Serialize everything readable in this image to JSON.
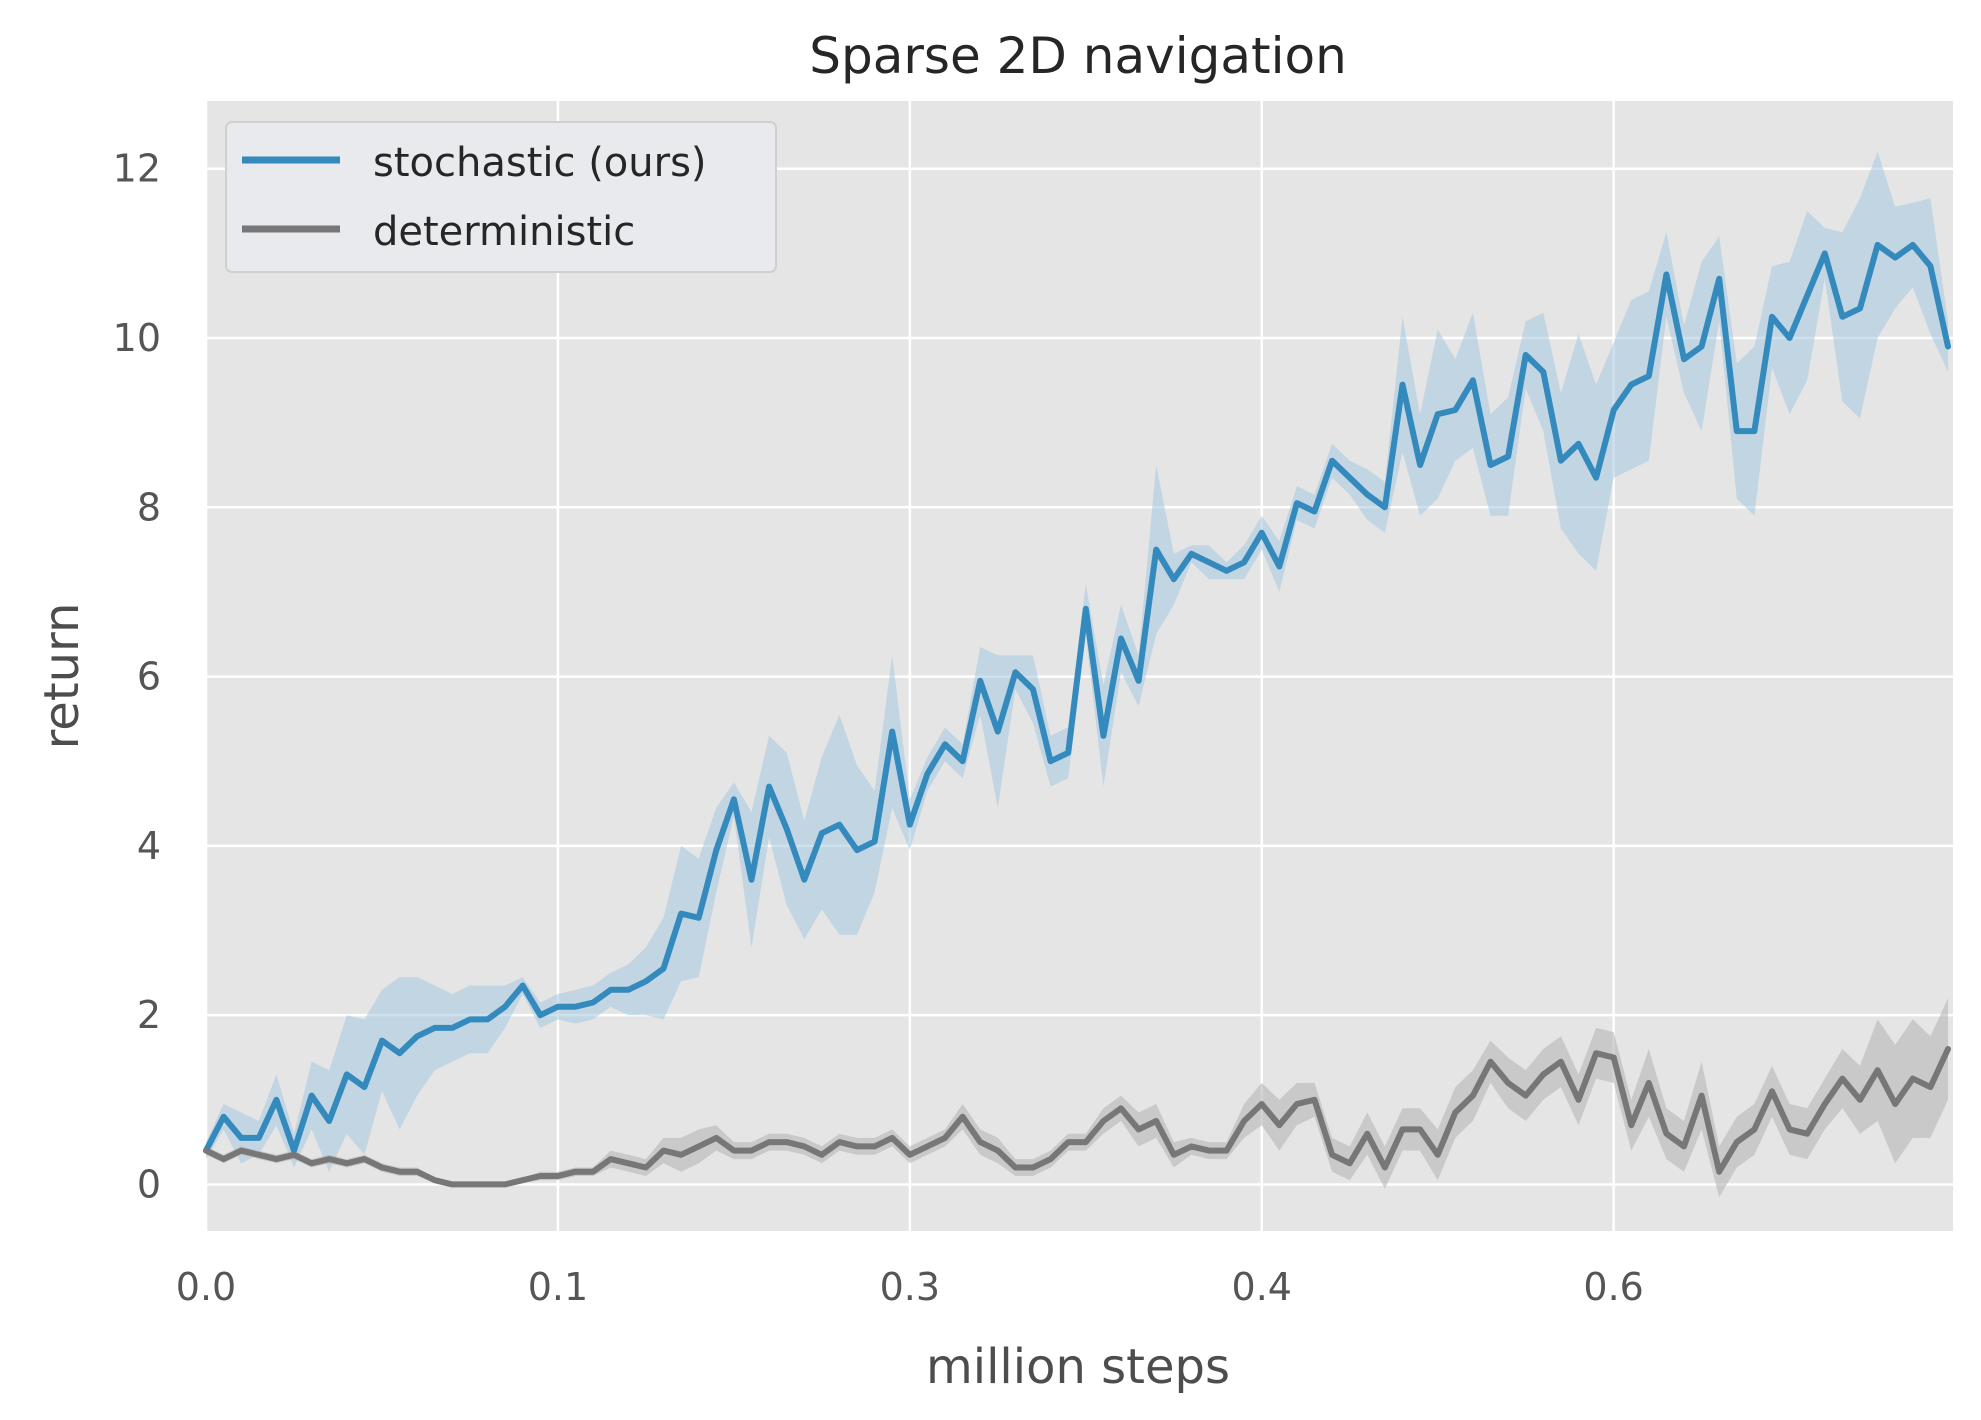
{
  "chart_data": {
    "type": "line",
    "title": "Sparse 2D navigation",
    "xlabel": "million steps",
    "ylabel": "return",
    "xlim": [
      0.0,
      0.695
    ],
    "ylim": [
      -0.55,
      12.8
    ],
    "x_ticks": [
      {
        "value": 0.0,
        "label": "0.0"
      },
      {
        "value": 0.14,
        "label": "0.1"
      },
      {
        "value": 0.28,
        "label": "0.3"
      },
      {
        "value": 0.42,
        "label": "0.4"
      },
      {
        "value": 0.56,
        "label": "0.6"
      }
    ],
    "y_ticks": [
      {
        "value": 0,
        "label": "0"
      },
      {
        "value": 2,
        "label": "2"
      },
      {
        "value": 4,
        "label": "4"
      },
      {
        "value": 6,
        "label": "6"
      },
      {
        "value": 8,
        "label": "8"
      },
      {
        "value": 10,
        "label": "10"
      },
      {
        "value": 12,
        "label": "12"
      }
    ],
    "grid": true,
    "legend_position": "top-left",
    "x_start": 0.0,
    "x_step": 0.007,
    "series": [
      {
        "name": "stochastic (ours)",
        "color": "#348abd",
        "band_color": "#a6c8e0",
        "values": [
          0.4,
          0.8,
          0.55,
          0.55,
          1.0,
          0.4,
          1.05,
          0.75,
          1.3,
          1.15,
          1.7,
          1.55,
          1.75,
          1.85,
          1.85,
          1.95,
          1.95,
          2.1,
          2.35,
          2.0,
          2.1,
          2.1,
          2.15,
          2.3,
          2.3,
          2.4,
          2.55,
          3.2,
          3.15,
          3.95,
          4.55,
          3.6,
          4.7,
          4.2,
          3.6,
          4.15,
          4.25,
          3.95,
          4.05,
          5.35,
          4.25,
          4.85,
          5.2,
          5.0,
          5.95,
          5.35,
          6.05,
          5.85,
          5.0,
          5.1,
          6.8,
          5.3,
          6.45,
          5.95,
          7.5,
          7.15,
          7.45,
          7.35,
          7.25,
          7.35,
          7.7,
          7.3,
          8.05,
          7.95,
          8.55,
          8.35,
          8.15,
          8.0,
          9.45,
          8.5,
          9.1,
          9.15,
          9.5,
          8.5,
          8.6,
          9.8,
          9.6,
          8.55,
          8.75,
          8.35,
          9.15,
          9.45,
          9.55,
          10.75,
          9.75,
          9.9,
          10.7,
          8.9,
          8.9,
          10.25,
          10.0,
          10.5,
          11.0,
          10.25,
          10.35,
          11.1,
          10.95,
          11.1,
          10.85,
          9.9
        ],
        "band_width": [
          0.1,
          0.15,
          0.3,
          0.2,
          0.3,
          0.2,
          0.4,
          0.6,
          0.7,
          0.8,
          0.6,
          0.9,
          0.7,
          0.5,
          0.4,
          0.4,
          0.4,
          0.25,
          0.1,
          0.15,
          0.15,
          0.2,
          0.2,
          0.2,
          0.3,
          0.4,
          0.6,
          0.8,
          0.7,
          0.5,
          0.2,
          0.8,
          0.6,
          0.9,
          0.7,
          0.9,
          1.3,
          1.0,
          0.6,
          0.9,
          0.3,
          0.2,
          0.2,
          0.2,
          0.4,
          0.9,
          0.2,
          0.4,
          0.3,
          0.3,
          0.3,
          0.6,
          0.4,
          0.3,
          1.0,
          0.3,
          0.1,
          0.2,
          0.1,
          0.2,
          0.2,
          0.3,
          0.2,
          0.2,
          0.2,
          0.2,
          0.3,
          0.3,
          0.8,
          0.6,
          1.0,
          0.6,
          0.8,
          0.6,
          0.7,
          0.4,
          0.7,
          0.8,
          1.3,
          1.1,
          0.8,
          1.0,
          1.0,
          0.5,
          0.4,
          1.0,
          0.5,
          0.8,
          1.0,
          0.6,
          0.9,
          1.0,
          0.3,
          1.0,
          1.3,
          1.1,
          0.6,
          0.5,
          0.8,
          0.3
        ]
      },
      {
        "name": "deterministic",
        "color": "#777777",
        "band_color": "#b5b5b5",
        "values": [
          0.4,
          0.3,
          0.4,
          0.35,
          0.3,
          0.35,
          0.25,
          0.3,
          0.25,
          0.3,
          0.2,
          0.15,
          0.15,
          0.05,
          0.0,
          0.0,
          0.0,
          0.0,
          0.05,
          0.1,
          0.1,
          0.15,
          0.15,
          0.3,
          0.25,
          0.2,
          0.4,
          0.35,
          0.45,
          0.55,
          0.4,
          0.4,
          0.5,
          0.5,
          0.45,
          0.35,
          0.5,
          0.45,
          0.45,
          0.55,
          0.35,
          0.45,
          0.55,
          0.8,
          0.5,
          0.4,
          0.2,
          0.2,
          0.3,
          0.5,
          0.5,
          0.75,
          0.9,
          0.65,
          0.75,
          0.35,
          0.45,
          0.4,
          0.4,
          0.75,
          0.95,
          0.7,
          0.95,
          1.0,
          0.35,
          0.25,
          0.6,
          0.2,
          0.65,
          0.65,
          0.35,
          0.85,
          1.05,
          1.45,
          1.2,
          1.05,
          1.3,
          1.45,
          1.0,
          1.55,
          1.5,
          0.7,
          1.2,
          0.6,
          0.45,
          1.05,
          0.15,
          0.5,
          0.65,
          1.1,
          0.65,
          0.6,
          0.95,
          1.25,
          1.0,
          1.35,
          0.95,
          1.25,
          1.15,
          1.6
        ],
        "band_width": [
          0.05,
          0.05,
          0.05,
          0.05,
          0.05,
          0.05,
          0.05,
          0.05,
          0.05,
          0.05,
          0.05,
          0.05,
          0.05,
          0.03,
          0.02,
          0.02,
          0.02,
          0.02,
          0.03,
          0.05,
          0.05,
          0.05,
          0.05,
          0.1,
          0.1,
          0.1,
          0.15,
          0.2,
          0.2,
          0.15,
          0.1,
          0.1,
          0.1,
          0.1,
          0.1,
          0.1,
          0.1,
          0.1,
          0.1,
          0.1,
          0.1,
          0.1,
          0.1,
          0.15,
          0.15,
          0.15,
          0.1,
          0.1,
          0.1,
          0.1,
          0.1,
          0.15,
          0.15,
          0.2,
          0.2,
          0.15,
          0.1,
          0.1,
          0.1,
          0.2,
          0.25,
          0.3,
          0.25,
          0.2,
          0.2,
          0.2,
          0.25,
          0.25,
          0.25,
          0.25,
          0.3,
          0.3,
          0.3,
          0.25,
          0.3,
          0.3,
          0.3,
          0.3,
          0.3,
          0.3,
          0.3,
          0.3,
          0.4,
          0.3,
          0.3,
          0.4,
          0.3,
          0.3,
          0.3,
          0.3,
          0.3,
          0.3,
          0.3,
          0.35,
          0.4,
          0.6,
          0.7,
          0.7,
          0.6,
          0.6
        ]
      }
    ]
  }
}
